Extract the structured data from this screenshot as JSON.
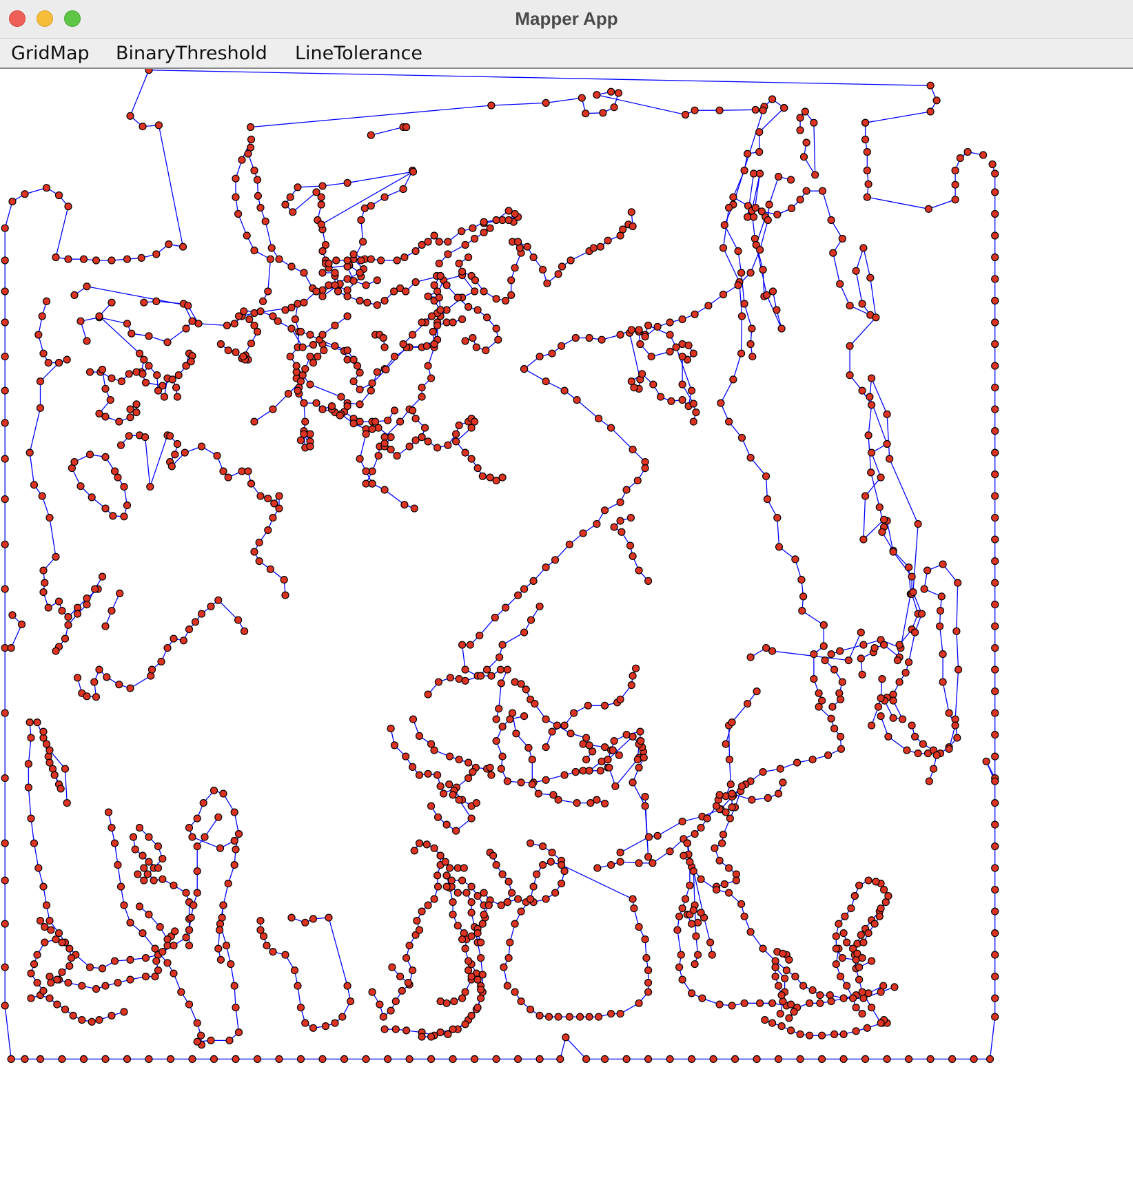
{
  "window": {
    "title": "Mapper App",
    "controls": [
      "close",
      "minimize",
      "zoom"
    ]
  },
  "menubar": {
    "items": [
      {
        "label": "GridMap"
      },
      {
        "label": "BinaryThreshold"
      },
      {
        "label": "LineTolerance"
      }
    ]
  },
  "map": {
    "point_fill": "#dd3322",
    "point_stroke": "#000000",
    "line_color": "#0000ff",
    "background": "#ffffff"
  }
}
